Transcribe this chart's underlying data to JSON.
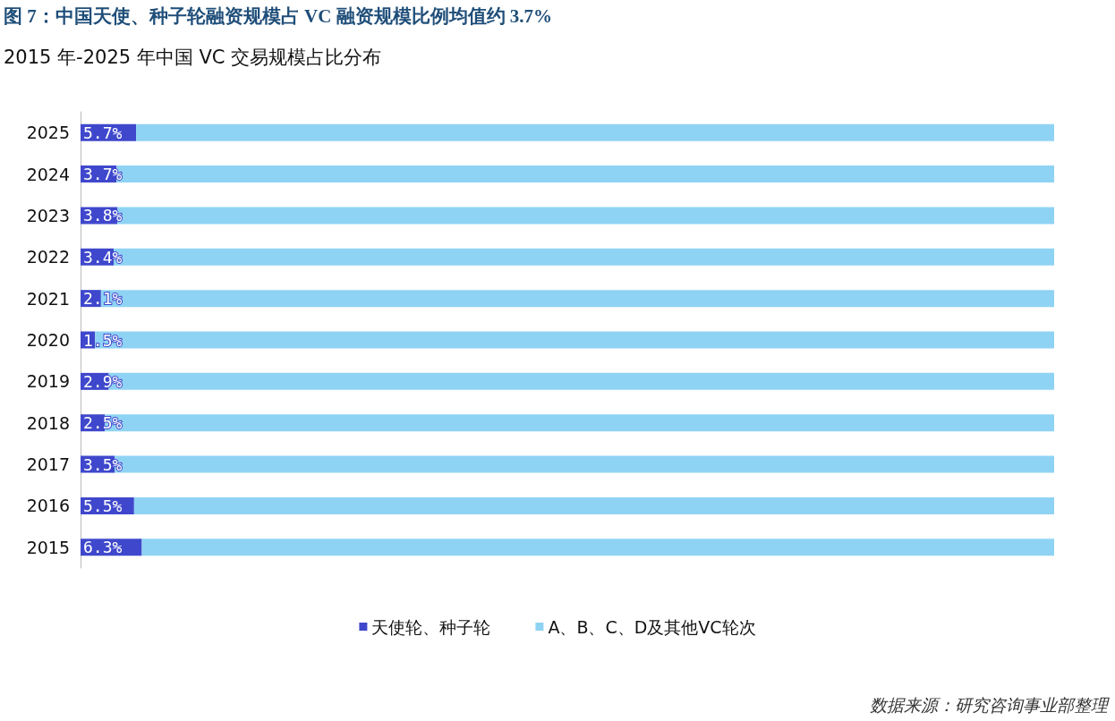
{
  "chart_data": {
    "type": "bar",
    "orientation": "horizontal",
    "stacked": true,
    "title": "图 7：中国天使、种子轮融资规模占 VC 融资规模比例均值约 3.7%",
    "subtitle": "2015 年-2025 年中国 VC 交易规模占比分布",
    "categories": [
      "2025",
      "2024",
      "2023",
      "2022",
      "2021",
      "2020",
      "2019",
      "2018",
      "2017",
      "2016",
      "2015"
    ],
    "series": [
      {
        "name": "天使轮、种子轮",
        "color": "#3f48cc",
        "values": [
          5.7,
          3.7,
          3.8,
          3.4,
          2.1,
          1.5,
          2.9,
          2.5,
          3.5,
          5.5,
          6.3
        ],
        "value_labels": [
          "5.7%",
          "3.7%",
          "3.8%",
          "3.4%",
          "2.1%",
          "1.5%",
          "2.9%",
          "2.5%",
          "3.5%",
          "5.5%",
          "6.3%"
        ]
      },
      {
        "name": "A、B、C、D及其他VC轮次",
        "color": "#8fd3f4",
        "values": [
          94.3,
          96.3,
          96.2,
          96.6,
          97.9,
          98.5,
          97.1,
          97.5,
          96.5,
          94.5,
          93.7
        ]
      }
    ],
    "xlim": [
      0,
      100
    ],
    "tick_labels": "y",
    "grid": false,
    "legend": "bottom",
    "annotations": [
      "数据来源：研究咨询事业部整理"
    ]
  }
}
